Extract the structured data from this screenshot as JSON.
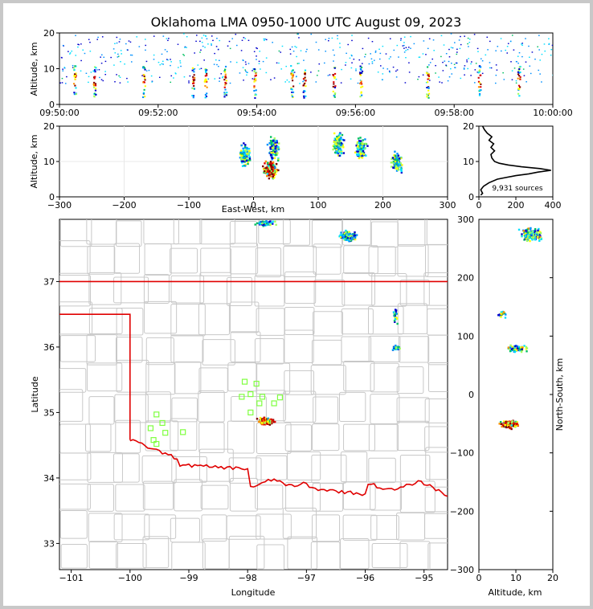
{
  "chart_data": [
    {
      "type": "scatter",
      "panel": "altitude-vs-time",
      "title": "Oklahoma LMA 0950-1000 UTC August 09, 2023",
      "ylabel": "Altitude, km",
      "ylim": [
        0,
        20
      ],
      "yticks": [
        "0",
        "10",
        "20"
      ],
      "xticks": [
        "09:50:00",
        "09:52:00",
        "09:54:00",
        "09:56:00",
        "09:58:00",
        "10:00:00"
      ],
      "xlim_minutes": [
        0,
        10
      ],
      "flash_columns_minutes": [
        0.3,
        0.7,
        1.7,
        2.7,
        2.95,
        3.35,
        3.95,
        4.7,
        4.95,
        5.55,
        6.1,
        7.45,
        8.5,
        9.3
      ]
    },
    {
      "type": "scatter",
      "panel": "altitude-vs-east-west",
      "xlabel": "East-West, km",
      "ylabel": "Altitude, km",
      "xlim": [
        -300,
        300
      ],
      "ylim": [
        0,
        20
      ],
      "xticks": [
        "−300",
        "−200",
        "−100",
        "0",
        "100",
        "200",
        "300"
      ],
      "yticks": [
        "0",
        "10",
        "20"
      ],
      "clusters": [
        {
          "x": -15,
          "y": 12
        },
        {
          "x": 25,
          "y": 8
        },
        {
          "x": 30,
          "y": 14
        },
        {
          "x": 130,
          "y": 15
        },
        {
          "x": 165,
          "y": 14
        },
        {
          "x": 220,
          "y": 10
        }
      ]
    },
    {
      "type": "line",
      "panel": "source-histogram",
      "annotation": "9,931 sources",
      "xlim": [
        0,
        400
      ],
      "ylim": [
        0,
        20
      ],
      "xticks": [
        "0",
        "200",
        "400"
      ],
      "yticks": [
        "0",
        "10",
        "20"
      ],
      "profile": [
        {
          "alt": 0.5,
          "count": 10
        },
        {
          "alt": 1,
          "count": 20
        },
        {
          "alt": 2,
          "count": 10
        },
        {
          "alt": 3,
          "count": 25
        },
        {
          "alt": 4,
          "count": 55
        },
        {
          "alt": 5,
          "count": 100
        },
        {
          "alt": 6,
          "count": 200
        },
        {
          "alt": 6.5,
          "count": 270
        },
        {
          "alt": 7,
          "count": 320
        },
        {
          "alt": 7.5,
          "count": 390
        },
        {
          "alt": 8,
          "count": 330
        },
        {
          "alt": 8.5,
          "count": 230
        },
        {
          "alt": 9,
          "count": 160
        },
        {
          "alt": 9.5,
          "count": 110
        },
        {
          "alt": 10,
          "count": 85
        },
        {
          "alt": 11,
          "count": 70
        },
        {
          "alt": 12,
          "count": 65
        },
        {
          "alt": 13,
          "count": 85
        },
        {
          "alt": 14,
          "count": 65
        },
        {
          "alt": 15,
          "count": 80
        },
        {
          "alt": 16,
          "count": 55
        },
        {
          "alt": 17,
          "count": 70
        },
        {
          "alt": 18,
          "count": 45
        },
        {
          "alt": 19,
          "count": 30
        },
        {
          "alt": 20,
          "count": 20
        }
      ]
    },
    {
      "type": "scatter",
      "panel": "plan-view-map",
      "xlabel": "Longitude",
      "ylabel": "Latitude",
      "xlim": [
        -101.2,
        -94.6
      ],
      "ylim": [
        32.6,
        37.95
      ],
      "xticks": [
        "−101",
        "−100",
        "−99",
        "−98",
        "−97",
        "−96",
        "−95"
      ],
      "yticks": [
        "33",
        "34",
        "35",
        "36",
        "37"
      ],
      "stations": [
        {
          "lon": -99.55,
          "lat": 34.97
        },
        {
          "lon": -99.65,
          "lat": 34.76
        },
        {
          "lon": -99.45,
          "lat": 34.84
        },
        {
          "lon": -99.4,
          "lat": 34.69
        },
        {
          "lon": -99.6,
          "lat": 34.58
        },
        {
          "lon": -99.55,
          "lat": 34.52
        },
        {
          "lon": -99.1,
          "lat": 34.7
        },
        {
          "lon": -98.05,
          "lat": 35.47
        },
        {
          "lon": -97.85,
          "lat": 35.44
        },
        {
          "lon": -98.1,
          "lat": 35.24
        },
        {
          "lon": -97.95,
          "lat": 35.28
        },
        {
          "lon": -97.75,
          "lat": 35.24
        },
        {
          "lon": -97.8,
          "lat": 35.14
        },
        {
          "lon": -97.55,
          "lat": 35.14
        },
        {
          "lon": -97.45,
          "lat": 35.23
        },
        {
          "lon": -97.95,
          "lat": 35.0
        }
      ]
    },
    {
      "type": "scatter",
      "panel": "north-south-vs-altitude",
      "xlabel": "Altitude, km",
      "ylabel": "North-South, km",
      "xlim": [
        0,
        20
      ],
      "ylim": [
        -300,
        300
      ],
      "xticks": [
        "0",
        "10",
        "20"
      ],
      "yticks": [
        "300",
        "200",
        "100",
        "0",
        "−100",
        "−200",
        "−300"
      ]
    }
  ],
  "colors": {
    "state_border": "#e00000",
    "county_lines": "#c8c8c8",
    "station_marker": "#7fff3f",
    "histogram_line": "#000000",
    "source_palette": [
      "#0000cc",
      "#0090ff",
      "#00e0ff",
      "#00c060",
      "#a0ff60",
      "#ffff00",
      "#ff9000",
      "#e00000",
      "#800000"
    ]
  }
}
